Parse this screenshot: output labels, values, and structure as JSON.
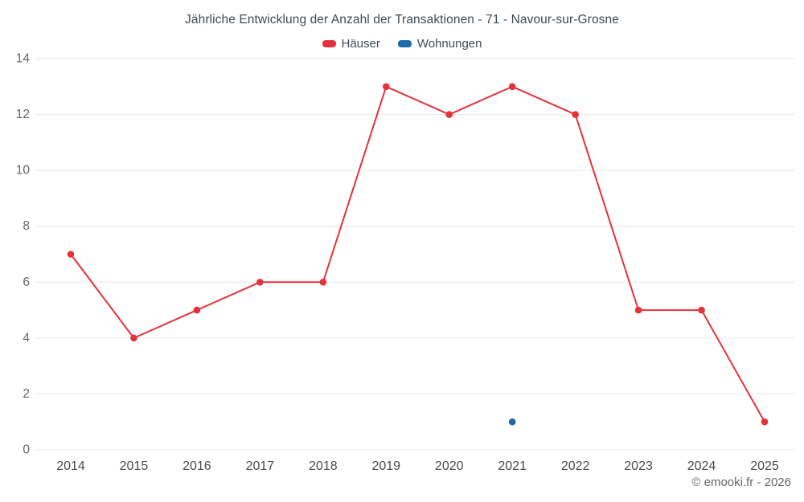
{
  "chart_data": {
    "type": "line",
    "title": "Jährliche Entwicklung der Anzahl der Transaktionen - 71 - Navour-sur-Grosne",
    "categories": [
      "2014",
      "2015",
      "2016",
      "2017",
      "2018",
      "2019",
      "2020",
      "2021",
      "2022",
      "2023",
      "2024",
      "2025"
    ],
    "series": [
      {
        "name": "Häuser",
        "color": "#e4323b",
        "values": [
          7,
          4,
          5,
          6,
          6,
          13,
          12,
          13,
          12,
          5,
          5,
          1
        ]
      },
      {
        "name": "Wohnungen",
        "color": "#1b6ca8",
        "values": [
          null,
          null,
          null,
          null,
          null,
          null,
          null,
          1,
          null,
          null,
          null,
          null
        ]
      }
    ],
    "ylim": [
      0,
      14
    ],
    "yticks": [
      0,
      2,
      4,
      6,
      8,
      10,
      12,
      14
    ],
    "grid": true,
    "legend_position": "top",
    "xlabel": "",
    "ylabel": ""
  },
  "footer": {
    "credit": "© emooki.fr - 2026"
  }
}
